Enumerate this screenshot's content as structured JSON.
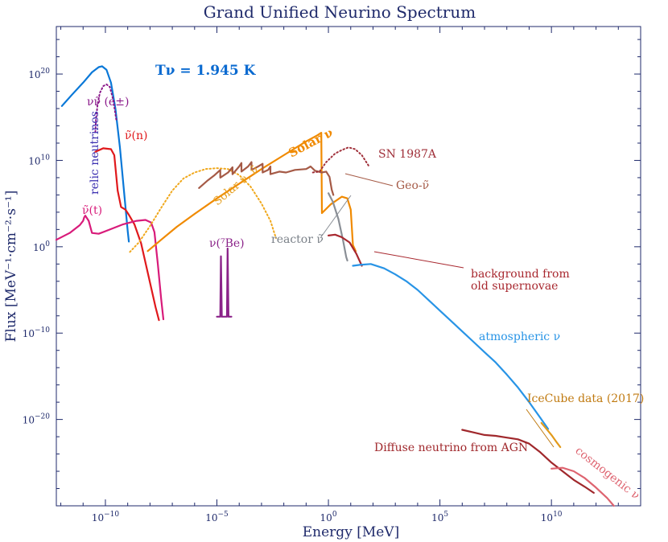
{
  "chart_data": {
    "type": "line",
    "title": "Grand Unified Neurino Spectrum",
    "xlabel": "Energy [MeV]",
    "ylabel": "Flux [MeV⁻¹·cm⁻²·s⁻¹]",
    "x_scale": "log10",
    "y_scale": "log10",
    "xlim_log10": [
      -12.2,
      14.0
    ],
    "ylim_log10": [
      -30.0,
      25.5
    ],
    "x_ticks": [
      {
        "value": -10,
        "base": "10",
        "exp": "−10"
      },
      {
        "value": -5,
        "base": "10",
        "exp": "−5"
      },
      {
        "value": 0,
        "base": "10",
        "exp": "0"
      },
      {
        "value": 5,
        "base": "10",
        "exp": "5"
      },
      {
        "value": 10,
        "base": "10",
        "exp": "10"
      }
    ],
    "y_ticks": [
      {
        "value": 20,
        "base": "10",
        "exp": "20"
      },
      {
        "value": 10,
        "base": "10",
        "exp": "10"
      },
      {
        "value": 0,
        "base": "10",
        "exp": "0"
      },
      {
        "value": -10,
        "base": "10",
        "exp": "−10"
      },
      {
        "value": -20,
        "base": "10",
        "exp": "−20"
      }
    ],
    "series": [
      {
        "name": "relic neutrinos",
        "color": "#0a78d8",
        "dash": "solid",
        "points": [
          [
            -11.95,
            16.3
          ],
          [
            -11.5,
            17.6
          ],
          [
            -11.0,
            19.0
          ],
          [
            -10.6,
            20.2
          ],
          [
            -10.3,
            20.8
          ],
          [
            -10.15,
            20.9
          ],
          [
            -9.95,
            20.5
          ],
          [
            -9.75,
            19.0
          ],
          [
            -9.55,
            16.0
          ],
          [
            -9.35,
            11.5
          ],
          [
            -9.15,
            6.0
          ],
          [
            -9.0,
            1.8
          ],
          [
            -8.95,
            0.6
          ]
        ]
      },
      {
        "name": "νν̃ (e±)",
        "color": "#8b1a8b",
        "dash": "dotted",
        "points": [
          [
            -10.45,
            13.3
          ],
          [
            -10.42,
            14.8
          ],
          [
            -10.35,
            16.5
          ],
          [
            -10.25,
            17.8
          ],
          [
            -10.1,
            18.6
          ],
          [
            -9.95,
            18.8
          ],
          [
            -9.8,
            18.5
          ],
          [
            -9.65,
            17.0
          ],
          [
            -9.5,
            14.5
          ]
        ]
      },
      {
        "name": "ν̃(n)",
        "color": "#e0191c",
        "dash": "solid",
        "points": [
          [
            -10.45,
            11.0
          ],
          [
            -10.1,
            11.4
          ],
          [
            -9.75,
            11.3
          ],
          [
            -9.6,
            10.6
          ],
          [
            -9.45,
            6.5
          ],
          [
            -9.3,
            4.6
          ],
          [
            -9.1,
            4.3
          ],
          [
            -8.95,
            3.7
          ],
          [
            -8.7,
            2.6
          ],
          [
            -8.4,
            0.4
          ],
          [
            -8.1,
            -3.0
          ],
          [
            -7.75,
            -7.0
          ],
          [
            -7.6,
            -8.5
          ]
        ]
      },
      {
        "name": "ν̃(t)",
        "color": "#d81b7a",
        "dash": "solid",
        "points": [
          [
            -12.2,
            0.8
          ],
          [
            -11.6,
            1.6
          ],
          [
            -11.15,
            2.5
          ],
          [
            -11.0,
            3.0
          ],
          [
            -10.95,
            3.4
          ],
          [
            -10.9,
            3.6
          ],
          [
            -10.75,
            3.0
          ],
          [
            -10.6,
            1.6
          ],
          [
            -10.3,
            1.5
          ],
          [
            -9.8,
            2.0
          ],
          [
            -9.2,
            2.6
          ],
          [
            -8.6,
            3.0
          ],
          [
            -8.2,
            3.1
          ],
          [
            -7.95,
            2.8
          ],
          [
            -7.8,
            1.7
          ],
          [
            -7.65,
            -2.0
          ],
          [
            -7.5,
            -6.0
          ],
          [
            -7.4,
            -8.4
          ]
        ]
      },
      {
        "name": "Solar ν, ν̃",
        "color": "#f0a81c",
        "dash": "dotted",
        "points": [
          [
            -8.9,
            -0.6
          ],
          [
            -8.5,
            0.5
          ],
          [
            -8.0,
            2.4
          ],
          [
            -7.5,
            4.5
          ],
          [
            -7.0,
            6.5
          ],
          [
            -6.5,
            7.9
          ],
          [
            -6.0,
            8.6
          ],
          [
            -5.5,
            9.0
          ],
          [
            -5.0,
            9.1
          ],
          [
            -4.5,
            9.0
          ],
          [
            -4.0,
            8.3
          ],
          [
            -3.5,
            7.0
          ],
          [
            -3.0,
            5.0
          ],
          [
            -2.6,
            3.0
          ],
          [
            -2.35,
            1.0
          ]
        ]
      },
      {
        "name": "Solar ν",
        "color": "#f08a00",
        "dash": "solid",
        "points": [
          [
            -8.1,
            -0.5
          ],
          [
            -7.5,
            0.8
          ],
          [
            -6.8,
            2.3
          ],
          [
            -6.0,
            3.8
          ],
          [
            -5.0,
            5.6
          ],
          [
            -4.0,
            7.3
          ],
          [
            -3.0,
            9.0
          ],
          [
            -2.0,
            10.6
          ],
          [
            -1.0,
            12.2
          ],
          [
            -0.5,
            12.9
          ],
          [
            -0.32,
            13.2
          ],
          [
            -0.29,
            3.9
          ],
          [
            0.1,
            4.9
          ],
          [
            0.6,
            5.8
          ],
          [
            0.85,
            5.6
          ],
          [
            1.0,
            4.3
          ],
          [
            1.1,
            0.2
          ],
          [
            1.22,
            -0.5
          ]
        ]
      },
      {
        "name": "Geo-ν̃",
        "color": "#a55a46",
        "dash": "solid",
        "points": [
          [
            -5.8,
            6.8
          ],
          [
            -5.4,
            7.7
          ],
          [
            -5.1,
            8.3
          ],
          [
            -4.85,
            8.9
          ],
          [
            -4.85,
            8.0
          ],
          [
            -4.5,
            8.6
          ],
          [
            -4.3,
            9.2
          ],
          [
            -4.3,
            8.4
          ],
          [
            -4.0,
            9.3
          ],
          [
            -3.9,
            9.7
          ],
          [
            -3.9,
            8.7
          ],
          [
            -3.6,
            9.3
          ],
          [
            -3.45,
            9.8
          ],
          [
            -3.45,
            8.9
          ],
          [
            -3.15,
            9.3
          ],
          [
            -2.95,
            9.6
          ],
          [
            -2.95,
            8.6
          ],
          [
            -2.7,
            8.9
          ],
          [
            -2.6,
            9.3
          ],
          [
            -2.6,
            8.4
          ],
          [
            -2.2,
            8.7
          ],
          [
            -1.9,
            8.6
          ],
          [
            -1.5,
            8.9
          ],
          [
            -1.0,
            9.0
          ],
          [
            -0.8,
            9.3
          ],
          [
            -0.6,
            8.8
          ],
          [
            -0.3,
            8.6
          ],
          [
            -0.1,
            8.7
          ],
          [
            0.05,
            8.1
          ],
          [
            0.15,
            6.6
          ],
          [
            0.22,
            6.0
          ]
        ]
      },
      {
        "name": "SN 1987A",
        "color": "#a0303a",
        "dash": "dotted",
        "points": [
          [
            -0.7,
            8.6
          ],
          [
            -0.4,
            8.7
          ],
          [
            -0.1,
            9.8
          ],
          [
            0.3,
            10.8
          ],
          [
            0.6,
            11.2
          ],
          [
            0.9,
            11.5
          ],
          [
            1.2,
            11.3
          ],
          [
            1.5,
            10.6
          ],
          [
            1.8,
            9.4
          ]
        ]
      },
      {
        "name": "reactor ν̃",
        "color": "#8a8f96",
        "dash": "solid",
        "points": [
          [
            0.0,
            6.2
          ],
          [
            0.2,
            5.2
          ],
          [
            0.45,
            3.2
          ],
          [
            0.65,
            0.8
          ],
          [
            0.8,
            -1.2
          ],
          [
            0.85,
            -1.6
          ]
        ]
      },
      {
        "name": "background from old supernovae",
        "color": "#a8282f",
        "dash": "solid",
        "points": [
          [
            0.0,
            1.3
          ],
          [
            0.3,
            1.4
          ],
          [
            0.6,
            1.1
          ],
          [
            0.95,
            0.5
          ],
          [
            1.25,
            -0.8
          ],
          [
            1.5,
            -2.2
          ]
        ]
      },
      {
        "name": "atmospheric ν",
        "color": "#2894e6",
        "dash": "solid",
        "points": [
          [
            1.1,
            -2.2
          ],
          [
            1.4,
            -2.1
          ],
          [
            1.9,
            -2.0
          ],
          [
            2.5,
            -2.5
          ],
          [
            3.0,
            -3.2
          ],
          [
            3.5,
            -4.0
          ],
          [
            4.0,
            -5.0
          ],
          [
            4.5,
            -6.2
          ],
          [
            5.0,
            -7.4
          ],
          [
            5.5,
            -8.6
          ],
          [
            6.0,
            -9.8
          ],
          [
            6.5,
            -11.0
          ],
          [
            7.0,
            -12.2
          ],
          [
            7.5,
            -13.4
          ],
          [
            8.0,
            -14.8
          ],
          [
            8.5,
            -16.3
          ],
          [
            9.0,
            -18.0
          ],
          [
            9.5,
            -19.8
          ],
          [
            9.85,
            -21.1
          ]
        ]
      },
      {
        "name": "Diffuse neutrino from AGN",
        "color": "#a0282c",
        "dash": "solid",
        "points": [
          [
            6.0,
            -21.2
          ],
          [
            6.5,
            -21.5
          ],
          [
            7.0,
            -21.8
          ],
          [
            7.5,
            -21.9
          ],
          [
            8.0,
            -22.1
          ],
          [
            8.5,
            -22.3
          ],
          [
            9.0,
            -22.8
          ],
          [
            9.5,
            -23.8
          ],
          [
            10.0,
            -25.0
          ],
          [
            10.5,
            -26.0
          ],
          [
            11.0,
            -27.0
          ],
          [
            11.5,
            -27.8
          ],
          [
            11.9,
            -28.5
          ]
        ]
      },
      {
        "name": "IceCube data (2017)",
        "color": "#e29a1a",
        "dash": "solid",
        "points": [
          [
            9.55,
            -20.4
          ],
          [
            9.75,
            -21.0
          ],
          [
            10.0,
            -21.8
          ],
          [
            10.25,
            -22.7
          ],
          [
            10.4,
            -23.2
          ]
        ]
      },
      {
        "name": "cosmogenic ν",
        "color": "#de6470",
        "dash": "solid",
        "points": [
          [
            10.0,
            -25.7
          ],
          [
            10.5,
            -25.6
          ],
          [
            11.0,
            -26.0
          ],
          [
            11.5,
            -26.8
          ],
          [
            12.0,
            -27.9
          ],
          [
            12.5,
            -29.1
          ],
          [
            12.8,
            -30.0
          ]
        ]
      },
      {
        "name": "ν(⁷Be)",
        "color": "#8b2389",
        "dash": "solid",
        "points": [
          [
            -5.0,
            -8.1
          ],
          [
            -4.85,
            -8.1
          ],
          [
            -4.82,
            -1.1
          ],
          [
            -4.78,
            -8.1
          ],
          [
            -4.55,
            -8.1
          ],
          [
            -4.52,
            -0.2
          ],
          [
            -4.48,
            -8.1
          ],
          [
            -4.35,
            -8.1
          ]
        ]
      }
    ],
    "annotations": [
      {
        "text": "background from",
        "color": "#a8282f"
      },
      {
        "text": "old supernovae",
        "color": "#a8282f"
      },
      {
        "text": "atmospheric ν",
        "color": "#2894e6"
      },
      {
        "text": "IceCube data (2017)",
        "color": "#c07a10"
      },
      {
        "text": "Diffuse neutrino from AGN",
        "color": "#a0282c"
      },
      {
        "text": "cosmogenic ν",
        "color": "#de6470"
      },
      {
        "text": "SN 1987A",
        "color": "#a0303a"
      },
      {
        "text": "Geo-ν̃",
        "color": "#a55a46"
      },
      {
        "text": "reactor ν̃",
        "color": "#7a8088"
      },
      {
        "text": "Solar ν",
        "color": "#f08a00"
      },
      {
        "text": "Solar ν, ν̃",
        "color": "#e6a020"
      },
      {
        "text": "ν(⁷Be)",
        "color": "#8b2389"
      },
      {
        "text": "ν̃(t)",
        "color": "#d81b7a"
      },
      {
        "text": "ν̃(n)",
        "color": "#e0191c"
      },
      {
        "text": "νν̃ (e±)",
        "color": "#8b1a8b"
      },
      {
        "text": "relic neutrinos",
        "color": "#3b2fb0"
      },
      {
        "text": "Tν = 1.945 K",
        "color": "#0a6ad0"
      }
    ]
  }
}
